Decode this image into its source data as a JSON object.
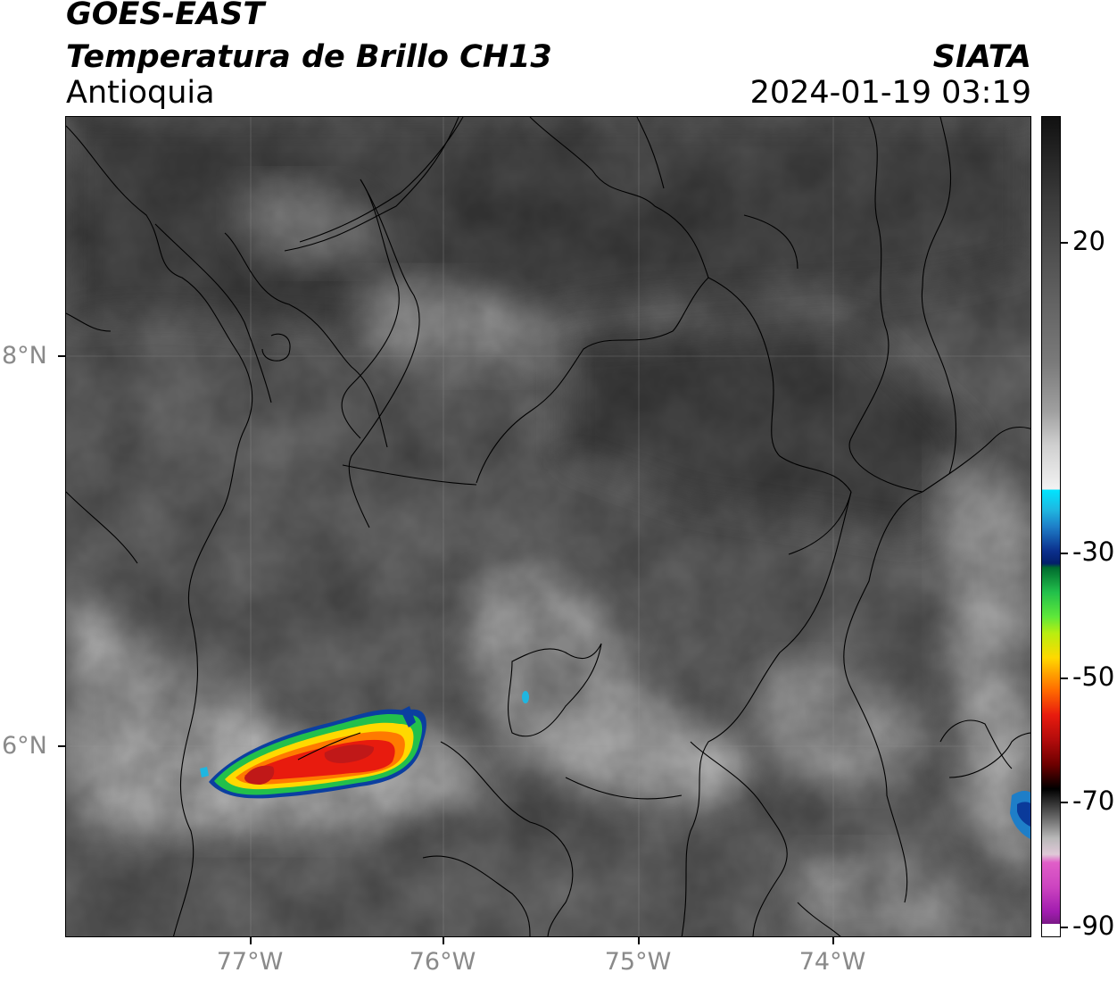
{
  "header": {
    "satellite": "GOES-EAST",
    "product": "Temperatura de Brillo CH13",
    "region": "Antioquia",
    "organization": "SIATA",
    "timestamp": "2024-01-19 03:19"
  },
  "map": {
    "lat_labels": [
      "8°N",
      "6°N"
    ],
    "lon_labels": [
      "77°W",
      "76°W",
      "75°W",
      "74°W"
    ]
  },
  "colorbar": {
    "labels": [
      "20",
      "-30",
      "-50",
      "-70",
      "-90"
    ],
    "colors": {
      "cold_tops": "#0b2f8c",
      "green": "#22c04b",
      "yellow": "#ffd900",
      "red": "#e81b0e",
      "darkred": "#6e0000",
      "magenta": "#a11caf"
    }
  }
}
